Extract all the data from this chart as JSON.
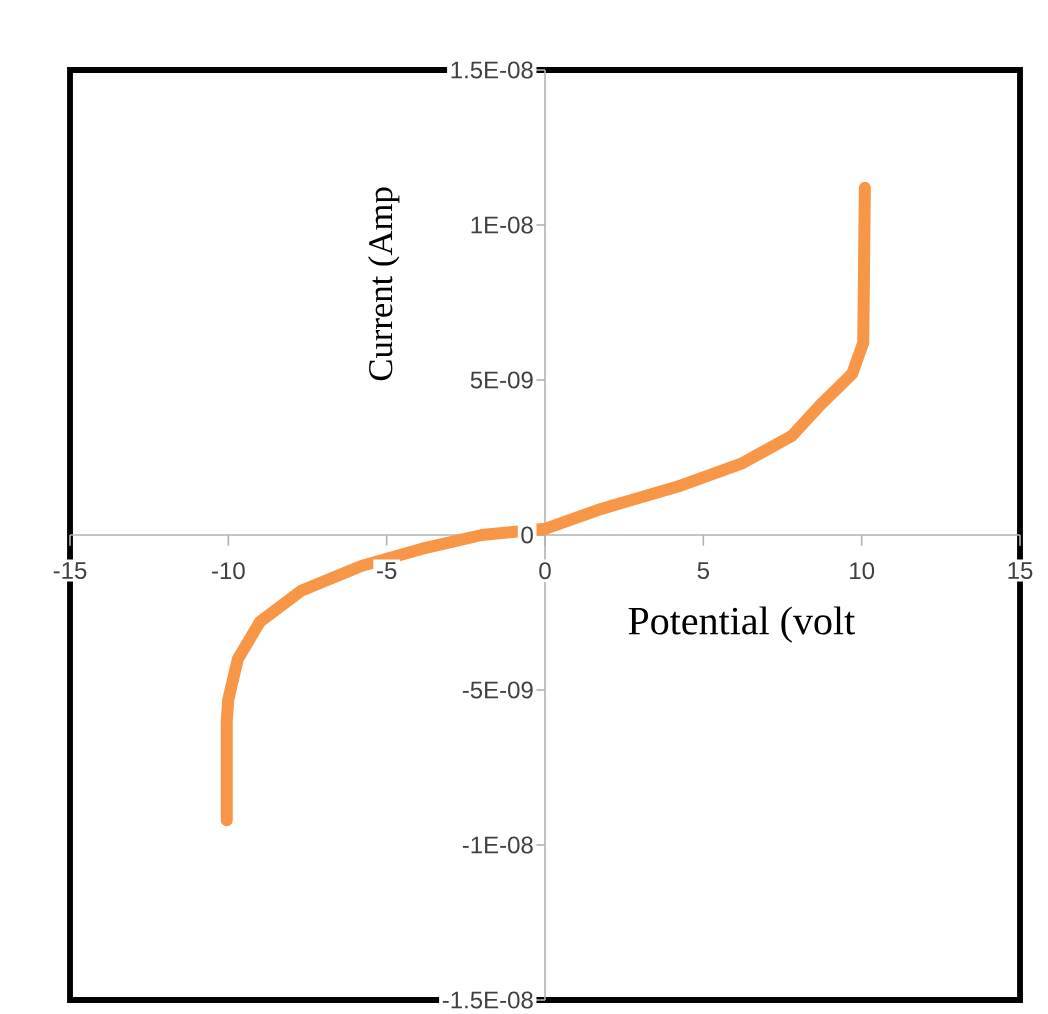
{
  "chart_data": {
    "type": "line",
    "xlabel": "Potential (volt",
    "ylabel": "Current (Amp",
    "color": "#f79646",
    "marker": "none",
    "line_style": "solid",
    "x": [
      -10.05,
      -10.05,
      -10.0,
      -9.7,
      -9.0,
      -7.7,
      -5.8,
      -3.9,
      -2.0,
      0,
      1.8,
      4.3,
      6.2,
      7.8,
      8.7,
      9.7,
      10.05,
      10.1
    ],
    "values": [
      -9.2e-09,
      -6e-09,
      -5.3e-09,
      -4e-09,
      -2.8e-09,
      -1.8e-09,
      -1e-09,
      -4.5e-10,
      0,
      2e-10,
      8.5e-10,
      1.6e-09,
      2.3e-09,
      3.2e-09,
      4.2e-09,
      5.2e-09,
      6.2e-09,
      1.12e-08
    ],
    "xlim": [
      -15,
      15
    ],
    "ylim": [
      -1.5e-08,
      1.5e-08
    ],
    "xticks": [
      -15,
      -10,
      -5,
      0,
      5,
      10,
      15
    ],
    "yticks": [
      {
        "value": -1.5e-08,
        "label": "-1.5E-08"
      },
      {
        "value": -1e-08,
        "label": "-1E-08"
      },
      {
        "value": -5e-09,
        "label": "-5E-09"
      },
      {
        "value": 0,
        "label": "0"
      },
      {
        "value": 5e-09,
        "label": "5E-09"
      },
      {
        "value": 1e-08,
        "label": "1E-08"
      },
      {
        "value": 1.5e-08,
        "label": "1.5E-08"
      }
    ]
  }
}
